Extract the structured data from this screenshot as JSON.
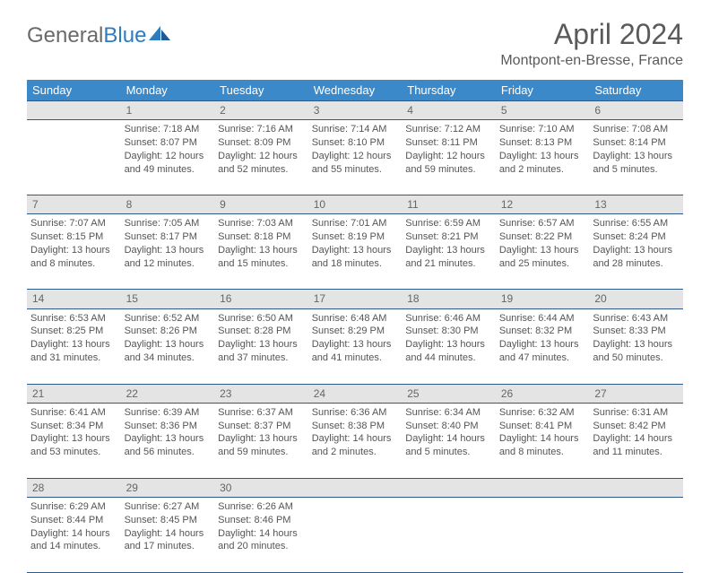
{
  "logo": {
    "word1": "General",
    "word2": "Blue"
  },
  "header": {
    "title": "April 2024",
    "location": "Montpont-en-Bresse, France"
  },
  "colors": {
    "header_bg": "#3b89c9",
    "daynum_bg": "#e4e4e4",
    "rule": "#2e5a8a",
    "text": "#555555"
  },
  "weekdays": [
    "Sunday",
    "Monday",
    "Tuesday",
    "Wednesday",
    "Thursday",
    "Friday",
    "Saturday"
  ],
  "weeks": [
    {
      "nums": [
        "",
        "1",
        "2",
        "3",
        "4",
        "5",
        "6"
      ],
      "cells": [
        {
          "sunrise": "",
          "sunset": "",
          "daylight": ""
        },
        {
          "sunrise": "Sunrise: 7:18 AM",
          "sunset": "Sunset: 8:07 PM",
          "daylight": "Daylight: 12 hours and 49 minutes."
        },
        {
          "sunrise": "Sunrise: 7:16 AM",
          "sunset": "Sunset: 8:09 PM",
          "daylight": "Daylight: 12 hours and 52 minutes."
        },
        {
          "sunrise": "Sunrise: 7:14 AM",
          "sunset": "Sunset: 8:10 PM",
          "daylight": "Daylight: 12 hours and 55 minutes."
        },
        {
          "sunrise": "Sunrise: 7:12 AM",
          "sunset": "Sunset: 8:11 PM",
          "daylight": "Daylight: 12 hours and 59 minutes."
        },
        {
          "sunrise": "Sunrise: 7:10 AM",
          "sunset": "Sunset: 8:13 PM",
          "daylight": "Daylight: 13 hours and 2 minutes."
        },
        {
          "sunrise": "Sunrise: 7:08 AM",
          "sunset": "Sunset: 8:14 PM",
          "daylight": "Daylight: 13 hours and 5 minutes."
        }
      ]
    },
    {
      "nums": [
        "7",
        "8",
        "9",
        "10",
        "11",
        "12",
        "13"
      ],
      "cells": [
        {
          "sunrise": "Sunrise: 7:07 AM",
          "sunset": "Sunset: 8:15 PM",
          "daylight": "Daylight: 13 hours and 8 minutes."
        },
        {
          "sunrise": "Sunrise: 7:05 AM",
          "sunset": "Sunset: 8:17 PM",
          "daylight": "Daylight: 13 hours and 12 minutes."
        },
        {
          "sunrise": "Sunrise: 7:03 AM",
          "sunset": "Sunset: 8:18 PM",
          "daylight": "Daylight: 13 hours and 15 minutes."
        },
        {
          "sunrise": "Sunrise: 7:01 AM",
          "sunset": "Sunset: 8:19 PM",
          "daylight": "Daylight: 13 hours and 18 minutes."
        },
        {
          "sunrise": "Sunrise: 6:59 AM",
          "sunset": "Sunset: 8:21 PM",
          "daylight": "Daylight: 13 hours and 21 minutes."
        },
        {
          "sunrise": "Sunrise: 6:57 AM",
          "sunset": "Sunset: 8:22 PM",
          "daylight": "Daylight: 13 hours and 25 minutes."
        },
        {
          "sunrise": "Sunrise: 6:55 AM",
          "sunset": "Sunset: 8:24 PM",
          "daylight": "Daylight: 13 hours and 28 minutes."
        }
      ]
    },
    {
      "nums": [
        "14",
        "15",
        "16",
        "17",
        "18",
        "19",
        "20"
      ],
      "cells": [
        {
          "sunrise": "Sunrise: 6:53 AM",
          "sunset": "Sunset: 8:25 PM",
          "daylight": "Daylight: 13 hours and 31 minutes."
        },
        {
          "sunrise": "Sunrise: 6:52 AM",
          "sunset": "Sunset: 8:26 PM",
          "daylight": "Daylight: 13 hours and 34 minutes."
        },
        {
          "sunrise": "Sunrise: 6:50 AM",
          "sunset": "Sunset: 8:28 PM",
          "daylight": "Daylight: 13 hours and 37 minutes."
        },
        {
          "sunrise": "Sunrise: 6:48 AM",
          "sunset": "Sunset: 8:29 PM",
          "daylight": "Daylight: 13 hours and 41 minutes."
        },
        {
          "sunrise": "Sunrise: 6:46 AM",
          "sunset": "Sunset: 8:30 PM",
          "daylight": "Daylight: 13 hours and 44 minutes."
        },
        {
          "sunrise": "Sunrise: 6:44 AM",
          "sunset": "Sunset: 8:32 PM",
          "daylight": "Daylight: 13 hours and 47 minutes."
        },
        {
          "sunrise": "Sunrise: 6:43 AM",
          "sunset": "Sunset: 8:33 PM",
          "daylight": "Daylight: 13 hours and 50 minutes."
        }
      ]
    },
    {
      "nums": [
        "21",
        "22",
        "23",
        "24",
        "25",
        "26",
        "27"
      ],
      "cells": [
        {
          "sunrise": "Sunrise: 6:41 AM",
          "sunset": "Sunset: 8:34 PM",
          "daylight": "Daylight: 13 hours and 53 minutes."
        },
        {
          "sunrise": "Sunrise: 6:39 AM",
          "sunset": "Sunset: 8:36 PM",
          "daylight": "Daylight: 13 hours and 56 minutes."
        },
        {
          "sunrise": "Sunrise: 6:37 AM",
          "sunset": "Sunset: 8:37 PM",
          "daylight": "Daylight: 13 hours and 59 minutes."
        },
        {
          "sunrise": "Sunrise: 6:36 AM",
          "sunset": "Sunset: 8:38 PM",
          "daylight": "Daylight: 14 hours and 2 minutes."
        },
        {
          "sunrise": "Sunrise: 6:34 AM",
          "sunset": "Sunset: 8:40 PM",
          "daylight": "Daylight: 14 hours and 5 minutes."
        },
        {
          "sunrise": "Sunrise: 6:32 AM",
          "sunset": "Sunset: 8:41 PM",
          "daylight": "Daylight: 14 hours and 8 minutes."
        },
        {
          "sunrise": "Sunrise: 6:31 AM",
          "sunset": "Sunset: 8:42 PM",
          "daylight": "Daylight: 14 hours and 11 minutes."
        }
      ]
    },
    {
      "nums": [
        "28",
        "29",
        "30",
        "",
        "",
        "",
        ""
      ],
      "cells": [
        {
          "sunrise": "Sunrise: 6:29 AM",
          "sunset": "Sunset: 8:44 PM",
          "daylight": "Daylight: 14 hours and 14 minutes."
        },
        {
          "sunrise": "Sunrise: 6:27 AM",
          "sunset": "Sunset: 8:45 PM",
          "daylight": "Daylight: 14 hours and 17 minutes."
        },
        {
          "sunrise": "Sunrise: 6:26 AM",
          "sunset": "Sunset: 8:46 PM",
          "daylight": "Daylight: 14 hours and 20 minutes."
        },
        {
          "sunrise": "",
          "sunset": "",
          "daylight": ""
        },
        {
          "sunrise": "",
          "sunset": "",
          "daylight": ""
        },
        {
          "sunrise": "",
          "sunset": "",
          "daylight": ""
        },
        {
          "sunrise": "",
          "sunset": "",
          "daylight": ""
        }
      ]
    }
  ]
}
